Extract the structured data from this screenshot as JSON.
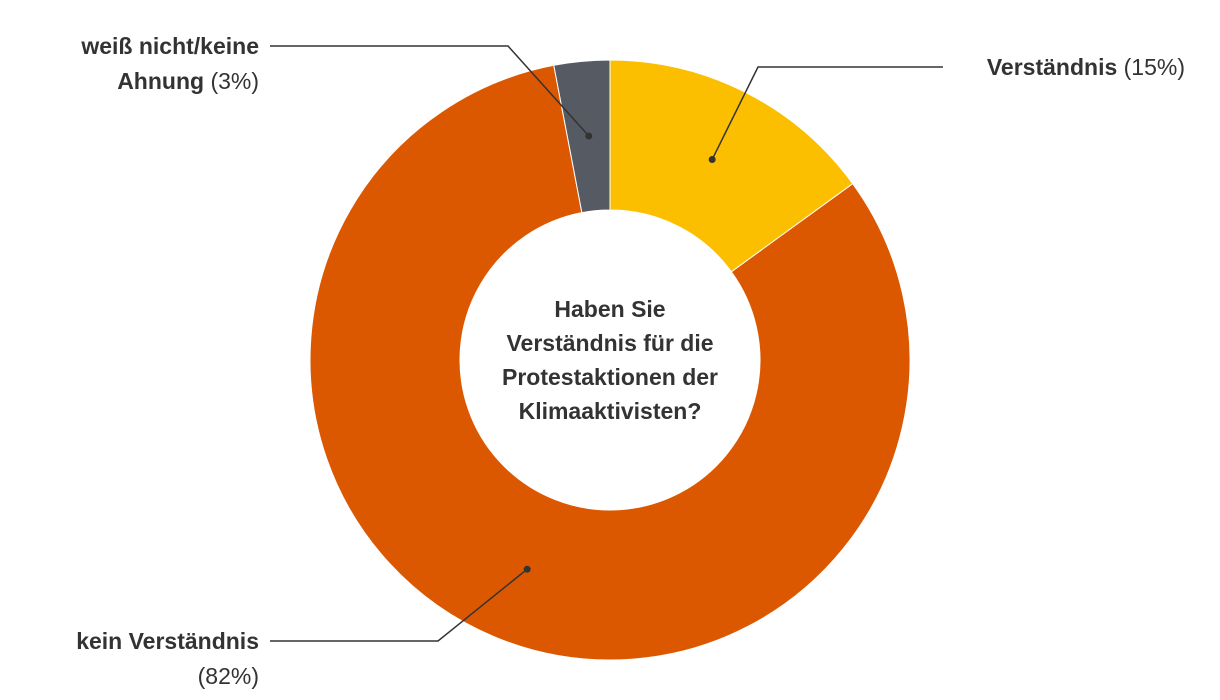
{
  "chart_data": {
    "type": "pie",
    "variant": "donut",
    "center_title": [
      "Haben Sie",
      "Verständnis für die",
      "Protestaktionen der",
      "Klimaaktivisten?"
    ],
    "slices": [
      {
        "label": "Verständnis",
        "value": 15,
        "value_text": "(15%)",
        "color": "#fcbf00"
      },
      {
        "label": "kein Verständnis",
        "value": 82,
        "value_text": "(82%)",
        "color": "#dc5800"
      },
      {
        "label": "weiß nicht/keine Ahnung",
        "value": 3,
        "value_text": "(3%)",
        "color": "#565b63"
      }
    ],
    "labels_display": [
      [
        "Verständnis (15%)"
      ],
      [
        "kein Verständnis",
        "(82%)"
      ],
      [
        "weiß nicht/keine",
        "Ahnung (3%)"
      ]
    ]
  }
}
